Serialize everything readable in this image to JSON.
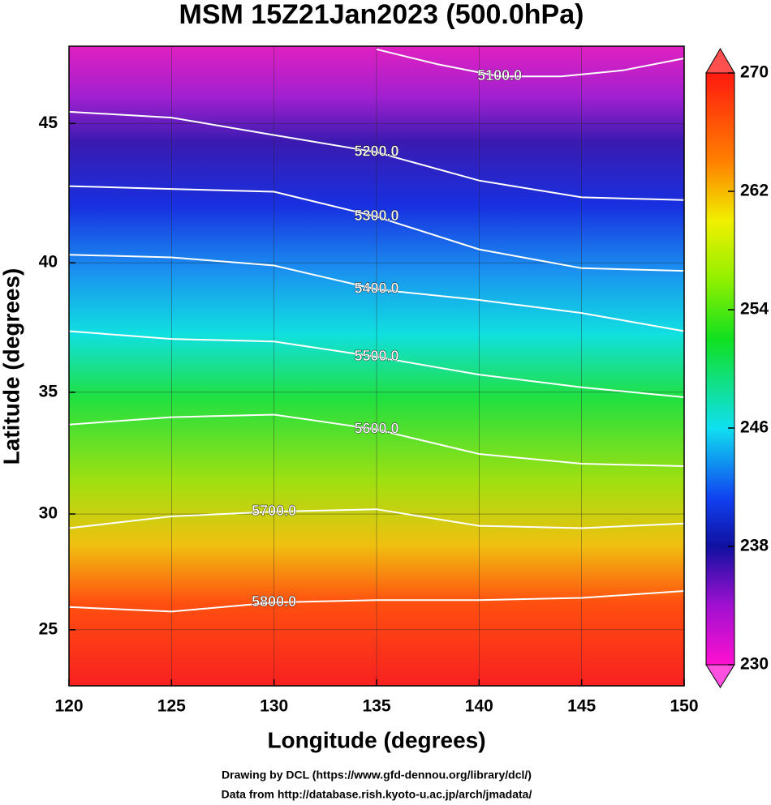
{
  "chart_data": {
    "type": "map",
    "title": "MSM 15Z21Jan2023 (500.0hPa)",
    "xlabel": "Longitude (degrees)",
    "ylabel": "Latitude  (degrees)",
    "projection": "mercator",
    "xlim": [
      120,
      150
    ],
    "ylim": [
      22.5,
      47.6
    ],
    "xticks": [
      120,
      125,
      130,
      135,
      140,
      145,
      150
    ],
    "yticks": [
      25,
      30,
      35,
      40,
      45
    ],
    "grid": true,
    "colorbar": {
      "lim": [
        230,
        270
      ],
      "ticks": [
        230,
        238,
        246,
        254,
        262,
        270
      ]
    },
    "contours": [
      {
        "value": 5100,
        "label": "5100.0",
        "lon": [
          135,
          138,
          141,
          144,
          147,
          150
        ],
        "lat": [
          47.5,
          47.0,
          46.6,
          46.6,
          46.8,
          47.2
        ]
      },
      {
        "value": 5200,
        "label": "5200.0",
        "lon": [
          120,
          125,
          130,
          135,
          140,
          145,
          150
        ],
        "lat": [
          45.4,
          45.2,
          44.6,
          44.0,
          43.0,
          42.4,
          42.3
        ]
      },
      {
        "value": 5300,
        "label": "5300.0",
        "lon": [
          120,
          125,
          130,
          135,
          140,
          145,
          150
        ],
        "lat": [
          42.8,
          42.7,
          42.6,
          41.7,
          40.5,
          39.8,
          39.7
        ]
      },
      {
        "value": 5400,
        "label": "5400.0",
        "lon": [
          120,
          125,
          130,
          135,
          140,
          145,
          150
        ],
        "lat": [
          40.3,
          40.2,
          39.9,
          39.0,
          38.6,
          38.1,
          37.4
        ]
      },
      {
        "value": 5500,
        "label": "5500.0",
        "lon": [
          120,
          125,
          130,
          135,
          140,
          145,
          150
        ],
        "lat": [
          37.4,
          37.1,
          37.0,
          36.4,
          35.7,
          35.2,
          34.8
        ]
      },
      {
        "value": 5600,
        "label": "5600.0",
        "lon": [
          120,
          125,
          130,
          135,
          140,
          145,
          150
        ],
        "lat": [
          33.7,
          34.0,
          34.1,
          33.5,
          32.5,
          32.1,
          32.0
        ]
      },
      {
        "value": 5700,
        "label": "5700.0",
        "lon": [
          120,
          125,
          130,
          135,
          140,
          145,
          150
        ],
        "lat": [
          29.4,
          29.9,
          30.1,
          30.2,
          29.5,
          29.4,
          29.6
        ]
      },
      {
        "value": 5800,
        "label": "5800.0",
        "lon": [
          120,
          125,
          130,
          135,
          140,
          145,
          150
        ],
        "lat": [
          26.0,
          25.8,
          26.2,
          26.3,
          26.3,
          26.4,
          26.7
        ]
      }
    ],
    "footer": [
      "Drawing by DCL (https://www.gfd-dennou.org/library/dcl/)",
      "Data from http://database.rish.kyoto-u.ac.jp/arch/jmadata/"
    ]
  }
}
